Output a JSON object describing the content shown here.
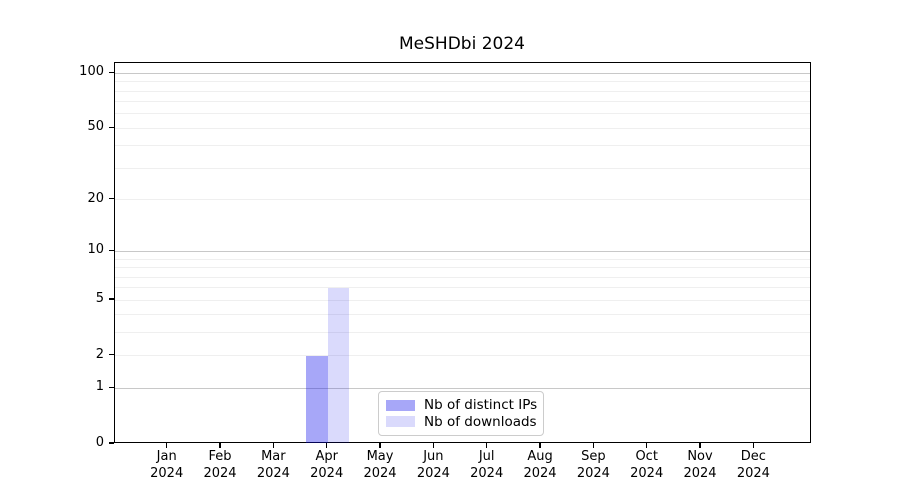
{
  "chart_data": {
    "type": "bar",
    "title": "MeSHDbi 2024",
    "categories": [
      "Jan 2024",
      "Feb 2024",
      "Mar 2024",
      "Apr 2024",
      "May 2024",
      "Jun 2024",
      "Jul 2024",
      "Aug 2024",
      "Sep 2024",
      "Oct 2024",
      "Nov 2024",
      "Dec 2024"
    ],
    "series": [
      {
        "name": "Nb of distinct IPs",
        "color": "rgba(10,10,235,0.36)",
        "values": [
          0,
          0,
          0,
          2,
          0,
          0,
          0,
          0,
          0,
          0,
          0,
          0
        ]
      },
      {
        "name": "Nb of downloads",
        "color": "rgba(10,10,235,0.15)",
        "values": [
          0,
          0,
          0,
          6,
          0,
          0,
          0,
          0,
          0,
          0,
          0,
          0
        ]
      }
    ],
    "xlabel": "",
    "ylabel": "",
    "yscale": "log1p",
    "ylim": [
      0,
      113
    ],
    "y_ticks": [
      0,
      1,
      2,
      5,
      10,
      20,
      50,
      100
    ],
    "y_major_gridlines": [
      1,
      10,
      100
    ],
    "y_minor_gridlines": [
      2,
      3,
      4,
      6,
      7,
      8,
      9,
      20,
      30,
      40,
      50,
      60,
      70,
      80,
      90,
      5
    ],
    "grid": true,
    "grid_colors": {
      "major": "#c8c8c8",
      "minor": "#efefef"
    },
    "spine_color": "#000000",
    "legend_position": "bottom-center-inside"
  }
}
